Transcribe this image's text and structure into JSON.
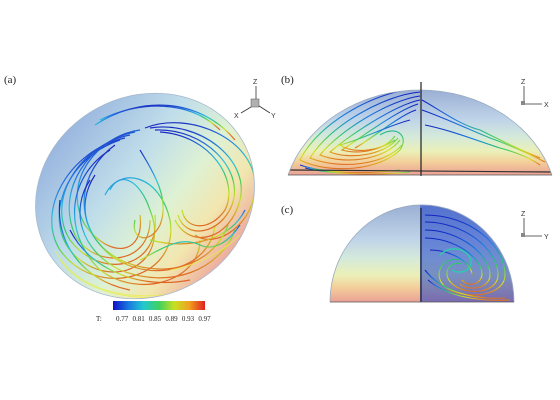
{
  "panels": [
    {
      "label": "(a)"
    },
    {
      "label": "(b)"
    },
    {
      "label": "(c)"
    }
  ],
  "axes": {
    "a": {
      "z": "Z",
      "x": "X",
      "y": "Y"
    },
    "b": {
      "z": "Z",
      "x": "X"
    },
    "c": {
      "z": "Z",
      "y": "Y"
    }
  },
  "colorbar": {
    "title": "T:",
    "ticks": [
      "0.77",
      "0.81",
      "0.85",
      "0.89",
      "0.93",
      "0.97"
    ],
    "colors": [
      "#1010c8",
      "#1a7ae0",
      "#20c8d0",
      "#40d060",
      "#c8e020",
      "#f0a020",
      "#e02020"
    ]
  }
}
